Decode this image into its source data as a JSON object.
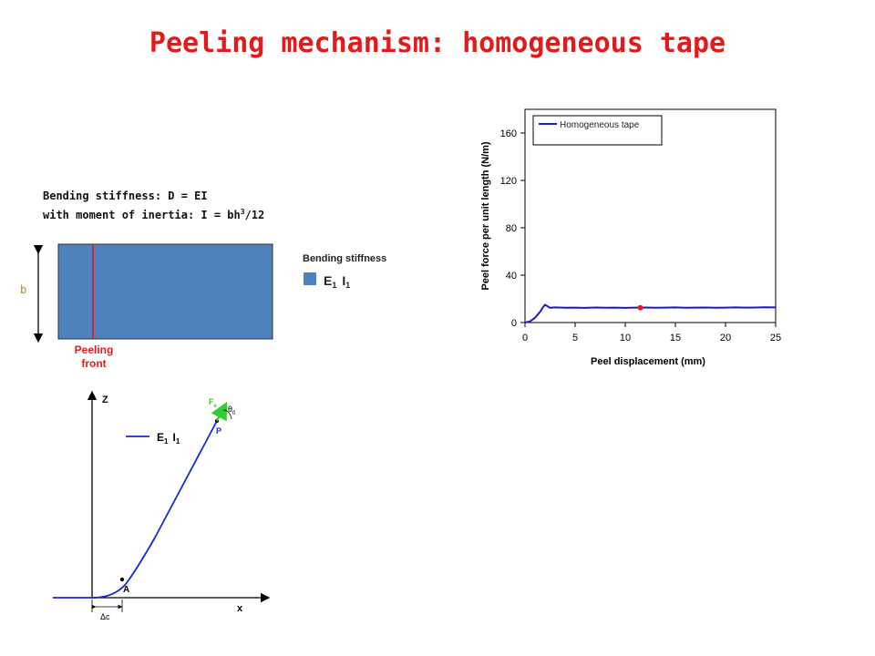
{
  "slide": {
    "title": "Peeling mechanism: homogeneous tape",
    "bending": {
      "line1": "Bending stiffness: D = EI",
      "line2_prefix": "with moment of inertia: I = bh",
      "line2_sup": "3",
      "line2_suffix": "/12",
      "dimension_label": "b",
      "legend_title": "Bending stiffness",
      "legend_label": "E",
      "legend_sub1": "1",
      "legend_label2": "I",
      "legend_sub2": "1",
      "front_label_1": "Peeling",
      "front_label_2": "front",
      "tape_color": "#4f81bd",
      "front_color": "#e41a1a"
    },
    "geometry": {
      "z_label": "Z",
      "x_label": "x",
      "legend_label": "E",
      "legend_sub1": "1",
      "legend_label2": "I",
      "legend_sub2": "1",
      "point_a": "A",
      "point_p": "P",
      "force_label": "F",
      "force_sub": "e",
      "angle_label": "θ",
      "angle_sub": "0",
      "dc_label": "Δc",
      "curve_color": "#1a2acd",
      "force_color": "#33cc33"
    }
  },
  "chart_data": {
    "type": "line",
    "title": "",
    "xlabel": "Peel displacement (mm)",
    "ylabel": "Peel force per unit length (N/m)",
    "xlim": [
      0,
      25
    ],
    "ylim": [
      0,
      180
    ],
    "xticks": [
      0,
      5,
      10,
      15,
      20,
      25
    ],
    "yticks": [
      0,
      40,
      80,
      120,
      160
    ],
    "grid": false,
    "legend_position": "top-left",
    "series": [
      {
        "name": "Homogeneous tape",
        "color": "#1a1acd",
        "x": [
          0,
          0.5,
          1.0,
          1.5,
          1.8,
          2.0,
          2.2,
          2.5,
          3,
          4,
          5,
          6,
          7,
          8,
          9,
          10,
          11,
          12,
          13,
          14,
          15,
          16,
          17,
          18,
          19,
          20,
          21,
          22,
          23,
          24,
          25
        ],
        "y": [
          0,
          1,
          4,
          9,
          13,
          15,
          14,
          12.5,
          12.8,
          12.5,
          12.6,
          12.4,
          12.7,
          12.5,
          12.6,
          12.4,
          12.6,
          12.7,
          12.5,
          12.6,
          12.8,
          12.5,
          12.6,
          12.7,
          12.5,
          12.6,
          12.8,
          12.6,
          12.7,
          12.9,
          12.8
        ]
      }
    ],
    "marker": {
      "x": 11.5,
      "y": 12.5,
      "color": "#e41a1a"
    }
  }
}
